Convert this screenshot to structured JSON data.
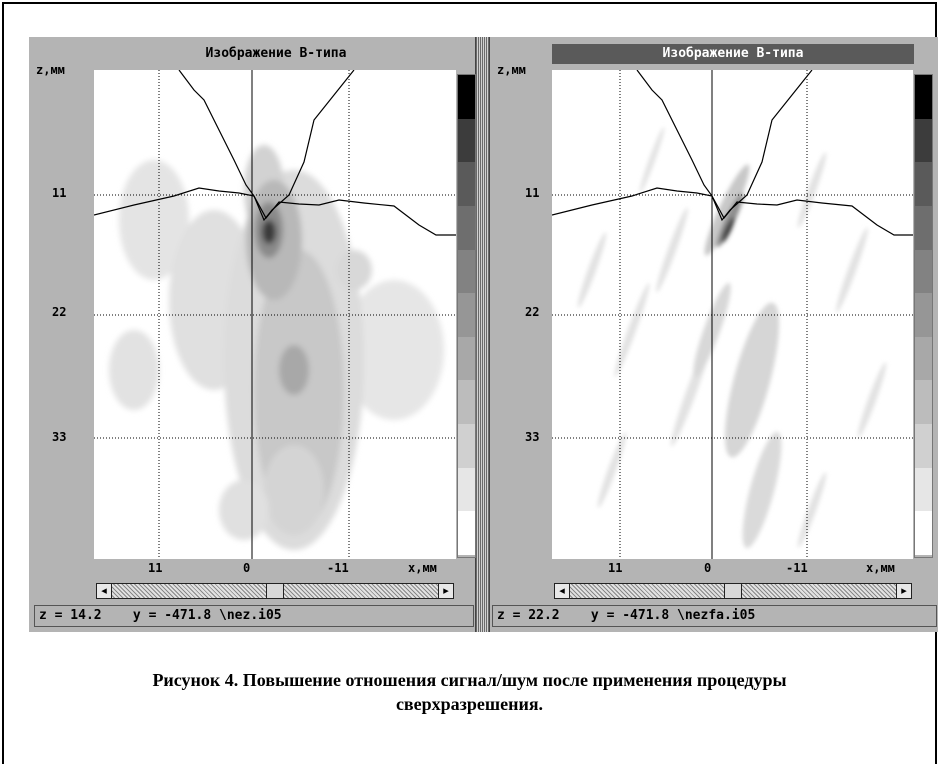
{
  "left_panel": {
    "title": "Изображение B-типа",
    "z_axis_label": "z,мм",
    "y_ticks": [
      "11",
      "22",
      "33"
    ],
    "x_ticks": [
      "11",
      "0",
      "-11"
    ],
    "x_axis_label": "x,мм",
    "status_text": "z = 14.2    y = -471.8 \\nez.i05",
    "scroll_position": 0.5
  },
  "right_panel": {
    "title": "Изображение B-типа",
    "z_axis_label": "z,мм",
    "y_ticks": [
      "11",
      "22",
      "33"
    ],
    "x_ticks": [
      "11",
      "0",
      "-11"
    ],
    "x_axis_label": "x,мм",
    "status_text": "z = 22.2    y = -471.8 \\nezfa.i05",
    "scroll_position": 0.5
  },
  "caption": {
    "line1": "Рисунок 4. Повышение отношения сигнал/шум после применения процедуры",
    "line2": "сверхразрешения."
  },
  "colors": {
    "screen_bg": "#b4b4b4",
    "plot_bg": "#ffffff",
    "right_title_bg": "#5a5a5a",
    "colorbar": [
      "#000000",
      "#3c3c3c",
      "#5a5a5a",
      "#6e6e6e",
      "#828282",
      "#969696",
      "#a8a8a8",
      "#bcbcbc",
      "#d0d0d0",
      "#e6e6e6",
      "#ffffff"
    ]
  },
  "arrow_left_icon": "◂",
  "arrow_right_icon": "▸"
}
